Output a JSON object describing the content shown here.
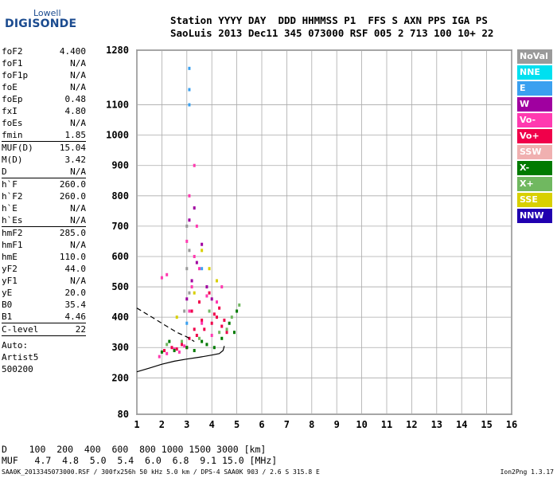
{
  "logo": {
    "line1": "Lowell",
    "line2": "DIGISONDE"
  },
  "header": {
    "row1": "Station YYYY DAY  DDD HHMMSS P1  FFS S AXN PPS IGA PS",
    "row2": "SaoLuis 2013 Dec11 345 073000 RSF 005 2 713 100 10+ 22"
  },
  "params": [
    {
      "name": "foF2",
      "value": "4.400"
    },
    {
      "name": "foF1",
      "value": "N/A"
    },
    {
      "name": "foF1p",
      "value": "N/A"
    },
    {
      "name": "foE",
      "value": "N/A"
    },
    {
      "name": "foEp",
      "value": "0.48"
    },
    {
      "name": "fxI",
      "value": "4.80"
    },
    {
      "name": "foEs",
      "value": "N/A"
    },
    {
      "name": "fmin",
      "value": "1.85",
      "sep": true
    },
    {
      "name": "MUF(D)",
      "value": "15.04"
    },
    {
      "name": "M(D)",
      "value": "3.42"
    },
    {
      "name": "D",
      "value": "N/A",
      "sep": true
    },
    {
      "name": "h`F",
      "value": "260.0"
    },
    {
      "name": "h`F2",
      "value": "260.0"
    },
    {
      "name": "h`E",
      "value": "N/A"
    },
    {
      "name": "h`Es",
      "value": "N/A",
      "sep": true
    },
    {
      "name": "hmF2",
      "value": "285.0"
    },
    {
      "name": "hmF1",
      "value": "N/A"
    },
    {
      "name": "hmE",
      "value": "110.0"
    },
    {
      "name": "yF2",
      "value": "44.0"
    },
    {
      "name": "yF1",
      "value": "N/A"
    },
    {
      "name": "yE",
      "value": "20.0"
    },
    {
      "name": "B0",
      "value": "35.4"
    },
    {
      "name": "B1",
      "value": "4.46",
      "sep": true
    },
    {
      "name": "C-level",
      "value": "22",
      "sep": true
    }
  ],
  "auto": {
    "label": "Auto:",
    "artist": "Artist5",
    "version": "500200"
  },
  "legend": [
    {
      "label": "NoVal",
      "color": "#9a9a9a"
    },
    {
      "label": "NNE",
      "color": "#00e0f0"
    },
    {
      "label": "E",
      "color": "#3aa0f0"
    },
    {
      "label": "W",
      "color": "#a000a0"
    },
    {
      "label": "Vo-",
      "color": "#ff3ab0"
    },
    {
      "label": "Vo+",
      "color": "#f0004a"
    },
    {
      "label": "SSW",
      "color": "#f0b0b0"
    },
    {
      "label": "X-",
      "color": "#007a00"
    },
    {
      "label": "X+",
      "color": "#70b860"
    },
    {
      "label": "SSE",
      "color": "#d8d000"
    },
    {
      "label": "NNW",
      "color": "#2000b0"
    }
  ],
  "bottom": {
    "d_row": "D    100  200  400  600  800 1000 1500 3000 [km]",
    "muf_row": "MUF   4.7  4.8  5.0  5.4  6.0  6.8  9.1 15.0 [MHz]"
  },
  "footer": {
    "left": "SAA0K_2013345073000.RSF / 300fx256h 50 kHz 5.0 km / DPS-4 SAA0K 903 / 2.6 S 315.8 E",
    "right": "Ion2Png 1.3.17"
  },
  "chart_data": {
    "type": "scatter",
    "title": "",
    "xlabel": "",
    "ylabel": "",
    "xlim": [
      1,
      16
    ],
    "ylim": [
      80,
      1280
    ],
    "x_ticks": [
      1,
      2,
      3,
      4,
      5,
      6,
      7,
      8,
      9,
      10,
      11,
      12,
      13,
      14,
      15,
      16
    ],
    "y_ticks": [
      80,
      200,
      300,
      400,
      500,
      600,
      700,
      800,
      900,
      1000,
      1100,
      1280
    ],
    "grid": true,
    "legend_position": "right",
    "series": [
      {
        "name": "Vo+",
        "color": "#f0004a",
        "points": [
          [
            2.1,
            290
          ],
          [
            2.4,
            300
          ],
          [
            2.8,
            310
          ],
          [
            3.1,
            330
          ],
          [
            3.4,
            340
          ],
          [
            3.7,
            360
          ],
          [
            4.0,
            380
          ],
          [
            4.2,
            400
          ],
          [
            4.4,
            370
          ],
          [
            4.6,
            350
          ],
          [
            3.2,
            420
          ],
          [
            3.5,
            450
          ],
          [
            3.9,
            480
          ],
          [
            4.3,
            430
          ],
          [
            3.0,
            300
          ],
          [
            3.6,
            390
          ],
          [
            4.1,
            410
          ],
          [
            4.5,
            390
          ],
          [
            2.6,
            295
          ],
          [
            3.3,
            360
          ]
        ]
      },
      {
        "name": "Vo-",
        "color": "#ff3ab0",
        "points": [
          [
            1.9,
            270
          ],
          [
            2.2,
            280
          ],
          [
            2.5,
            295
          ],
          [
            2.9,
            305
          ],
          [
            3.1,
            420
          ],
          [
            3.2,
            500
          ],
          [
            3.3,
            600
          ],
          [
            3.4,
            700
          ],
          [
            3.0,
            650
          ],
          [
            3.5,
            560
          ],
          [
            3.8,
            470
          ],
          [
            4.2,
            450
          ],
          [
            4.4,
            500
          ],
          [
            2.0,
            530
          ],
          [
            2.2,
            540
          ],
          [
            3.1,
            800
          ],
          [
            3.3,
            900
          ],
          [
            3.6,
            380
          ],
          [
            4.0,
            340
          ],
          [
            2.7,
            285
          ]
        ]
      },
      {
        "name": "X-",
        "color": "#007a00",
        "points": [
          [
            2.0,
            285
          ],
          [
            2.5,
            290
          ],
          [
            3.0,
            300
          ],
          [
            3.6,
            320
          ],
          [
            4.1,
            300
          ],
          [
            4.4,
            330
          ],
          [
            4.7,
            380
          ],
          [
            5.0,
            420
          ],
          [
            4.9,
            350
          ],
          [
            3.8,
            310
          ],
          [
            2.3,
            320
          ],
          [
            3.3,
            290
          ]
        ]
      },
      {
        "name": "X+",
        "color": "#70b860",
        "points": [
          [
            2.2,
            310
          ],
          [
            2.8,
            320
          ],
          [
            3.5,
            330
          ],
          [
            4.3,
            350
          ],
          [
            4.8,
            400
          ],
          [
            5.1,
            440
          ],
          [
            3.9,
            420
          ],
          [
            4.6,
            360
          ]
        ]
      },
      {
        "name": "W",
        "color": "#a000a0",
        "points": [
          [
            3.0,
            460
          ],
          [
            3.2,
            520
          ],
          [
            3.4,
            580
          ],
          [
            3.6,
            640
          ],
          [
            3.8,
            500
          ],
          [
            3.1,
            720
          ],
          [
            3.3,
            760
          ],
          [
            4.0,
            460
          ]
        ]
      },
      {
        "name": "SSE",
        "color": "#d8d000",
        "points": [
          [
            3.3,
            480
          ],
          [
            3.9,
            560
          ],
          [
            4.2,
            520
          ],
          [
            2.6,
            400
          ],
          [
            3.6,
            620
          ]
        ]
      },
      {
        "name": "E",
        "color": "#3aa0f0",
        "points": [
          [
            3.1,
            1220
          ],
          [
            3.1,
            1150
          ],
          [
            3.1,
            1100
          ],
          [
            3.0,
            380
          ],
          [
            3.6,
            560
          ]
        ]
      },
      {
        "name": "NoVal",
        "color": "#9a9a9a",
        "points": [
          [
            3.0,
            700
          ],
          [
            3.1,
            620
          ],
          [
            3.0,
            560
          ],
          [
            3.1,
            480
          ],
          [
            2.9,
            420
          ]
        ]
      }
    ],
    "trace_solid": {
      "x": [
        1.0,
        1.5,
        2.0,
        2.5,
        3.0,
        3.5,
        4.0,
        4.3,
        4.45,
        4.5
      ],
      "y": [
        220,
        232,
        245,
        255,
        262,
        268,
        275,
        280,
        290,
        305
      ]
    },
    "trace_dashed": {
      "x": [
        1.0,
        1.4,
        1.8,
        2.2,
        2.6,
        3.0,
        3.3
      ],
      "y": [
        430,
        410,
        390,
        370,
        350,
        335,
        320
      ]
    }
  }
}
